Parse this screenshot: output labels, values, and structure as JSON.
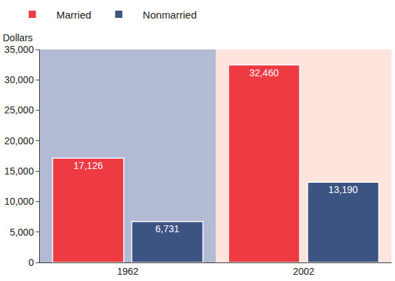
{
  "chart_data": {
    "type": "bar",
    "y_label": "Dollars",
    "categories": [
      "1962",
      "2002"
    ],
    "series": [
      {
        "name": "Married",
        "color": "#ee3a43",
        "values": [
          17126,
          32460
        ],
        "value_labels": [
          "17,126",
          "32,460"
        ]
      },
      {
        "name": "Nonmarried",
        "color": "#3b5482",
        "values": [
          6731,
          13190
        ],
        "value_labels": [
          "6,731",
          "13,190"
        ]
      }
    ],
    "ylim": [
      0,
      35000
    ],
    "yticks": [
      0,
      {
        "value": 5000,
        "label": "5,000"
      },
      {
        "value": 10000,
        "label": "10,000"
      },
      {
        "value": 15000,
        "label": "15,000"
      },
      {
        "value": 20000,
        "label": "20,000"
      },
      {
        "value": 25000,
        "label": "25,000"
      },
      {
        "value": 30000,
        "label": "30,000"
      },
      {
        "value": 35000,
        "label": "35,000"
      }
    ],
    "grid": false,
    "legend": "top left",
    "data_labels": true
  }
}
